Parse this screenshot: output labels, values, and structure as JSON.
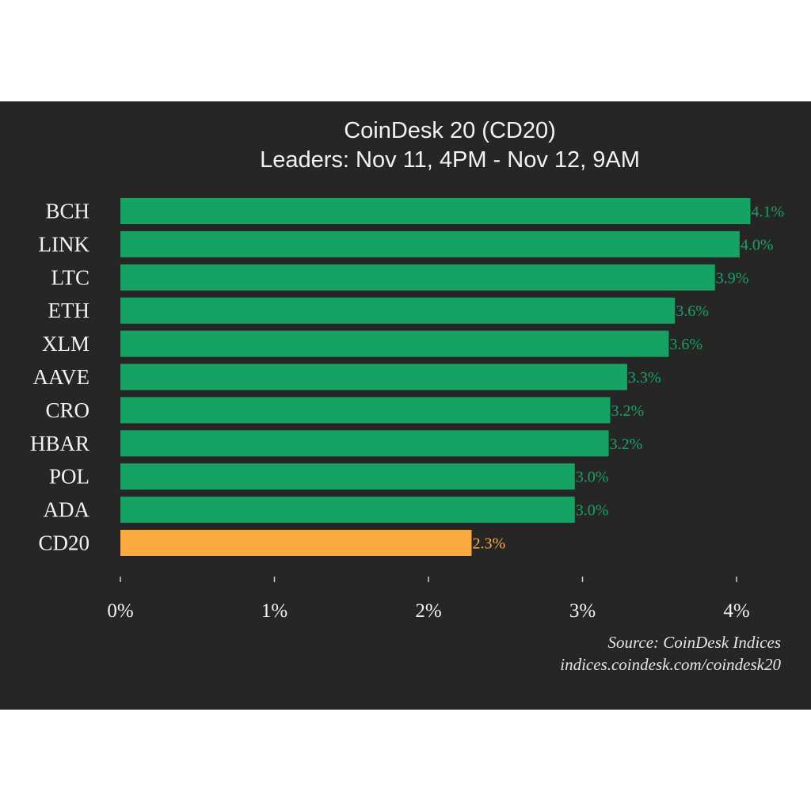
{
  "chart_data": {
    "type": "bar",
    "orientation": "horizontal",
    "title": "CoinDesk 20 (CD20)",
    "subtitle": "Leaders: Nov 11, 4PM - Nov 12, 9AM",
    "categories": [
      "BCH",
      "LINK",
      "LTC",
      "ETH",
      "XLM",
      "AAVE",
      "CRO",
      "HBAR",
      "POL",
      "ADA",
      "CD20"
    ],
    "values": [
      4.09,
      4.02,
      3.86,
      3.6,
      3.56,
      3.29,
      3.18,
      3.17,
      2.95,
      2.95,
      2.28
    ],
    "value_labels": [
      "4.1%",
      "4.0%",
      "3.9%",
      "3.6%",
      "3.6%",
      "3.3%",
      "3.2%",
      "3.2%",
      "3.0%",
      "3.0%",
      "2.3%"
    ],
    "bar_colors": [
      "#16a263",
      "#16a263",
      "#16a263",
      "#16a263",
      "#16a263",
      "#16a263",
      "#16a263",
      "#16a263",
      "#16a263",
      "#16a263",
      "#fbaa40"
    ],
    "label_colors": [
      "#16a263",
      "#16a263",
      "#16a263",
      "#16a263",
      "#16a263",
      "#16a263",
      "#16a263",
      "#16a263",
      "#16a263",
      "#16a263",
      "#fbaa40"
    ],
    "xticks": [
      0,
      1,
      2,
      3,
      4
    ],
    "xtick_labels": [
      "0%",
      "1%",
      "2%",
      "3%",
      "4%"
    ],
    "xlim": [
      0,
      4.2
    ],
    "xlabel": "",
    "ylabel": "",
    "grid": false,
    "legend": "none",
    "background_color": "#262626",
    "text_color": "#f2f2f2"
  },
  "source": {
    "line1": "Source: CoinDesk Indices",
    "line2": "indices.coindesk.com/coindesk20"
  }
}
